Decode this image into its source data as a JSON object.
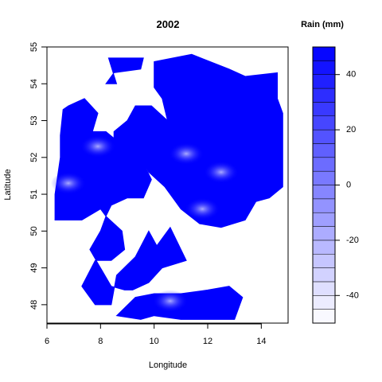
{
  "chart_data": {
    "type": "filled-contour",
    "title": "2002",
    "xlabel": "Longitude",
    "ylabel": "Latitude",
    "xlim": [
      6,
      15
    ],
    "ylim": [
      47.5,
      55
    ],
    "x_ticks": [
      6,
      8,
      10,
      12,
      14
    ],
    "y_ticks": [
      48,
      49,
      50,
      51,
      52,
      53,
      54,
      55
    ],
    "legend": {
      "title": "Rain (mm)",
      "min": -50,
      "max": 50,
      "levels": [
        -50,
        -45,
        -40,
        -35,
        -30,
        -25,
        -20,
        -15,
        -10,
        -5,
        0,
        5,
        10,
        15,
        20,
        25,
        30,
        35,
        40,
        45,
        50
      ],
      "ticks": [
        -40,
        -20,
        0,
        20,
        40
      ],
      "placement": "right",
      "color_low": "#ffffff",
      "color_high": "#0000ff"
    },
    "fill_color": "#0000ff",
    "regions": [
      {
        "name": "north-cap",
        "coords": [
          [
            8.3,
            54.7
          ],
          [
            9.6,
            54.7
          ],
          [
            9.5,
            54.4
          ],
          [
            8.5,
            54.3
          ],
          [
            8.2,
            54.0
          ],
          [
            8.6,
            54.0
          ]
        ]
      },
      {
        "name": "main-northeast",
        "coords": [
          [
            10.0,
            54.6
          ],
          [
            11.4,
            54.8
          ],
          [
            12.8,
            54.4
          ],
          [
            13.4,
            54.2
          ],
          [
            14.6,
            54.3
          ],
          [
            14.6,
            53.6
          ],
          [
            14.8,
            53.2
          ],
          [
            14.8,
            52.5
          ],
          [
            14.8,
            51.2
          ],
          [
            14.3,
            50.9
          ],
          [
            13.8,
            50.8
          ],
          [
            13.4,
            50.3
          ],
          [
            12.5,
            50.1
          ],
          [
            11.7,
            50.2
          ],
          [
            11.0,
            50.6
          ],
          [
            10.4,
            51.2
          ],
          [
            9.8,
            51.6
          ],
          [
            9.5,
            52.0
          ],
          [
            8.8,
            52.2
          ],
          [
            8.5,
            52.4
          ],
          [
            8.5,
            52.7
          ],
          [
            9.0,
            53.0
          ],
          [
            9.3,
            53.4
          ],
          [
            9.9,
            53.4
          ],
          [
            10.5,
            53.0
          ],
          [
            10.3,
            53.6
          ],
          [
            10.0,
            53.9
          ]
        ]
      },
      {
        "name": "west-block",
        "coords": [
          [
            6.6,
            53.3
          ],
          [
            6.8,
            53.4
          ],
          [
            7.4,
            53.6
          ],
          [
            7.9,
            53.2
          ],
          [
            7.7,
            52.7
          ],
          [
            8.2,
            52.7
          ],
          [
            8.7,
            52.4
          ],
          [
            9.5,
            52.0
          ],
          [
            9.9,
            51.4
          ],
          [
            9.6,
            50.9
          ],
          [
            9.0,
            50.9
          ],
          [
            8.4,
            50.7
          ],
          [
            8.2,
            50.4
          ],
          [
            8.0,
            50.6
          ],
          [
            7.3,
            50.3
          ],
          [
            6.3,
            50.3
          ],
          [
            6.3,
            51.0
          ],
          [
            6.5,
            52.0
          ],
          [
            6.5,
            52.6
          ]
        ]
      },
      {
        "name": "south-middle",
        "coords": [
          [
            8.2,
            50.4
          ],
          [
            8.8,
            50.0
          ],
          [
            8.9,
            49.5
          ],
          [
            8.4,
            49.2
          ],
          [
            7.8,
            49.2
          ],
          [
            7.3,
            48.5
          ],
          [
            7.8,
            48.0
          ],
          [
            8.4,
            48.0
          ],
          [
            8.6,
            48.8
          ],
          [
            9.3,
            49.3
          ],
          [
            9.8,
            50.0
          ],
          [
            10.1,
            49.6
          ],
          [
            10.6,
            50.1
          ],
          [
            11.2,
            49.2
          ],
          [
            10.3,
            49.0
          ],
          [
            9.8,
            48.6
          ],
          [
            9.2,
            48.4
          ],
          [
            8.9,
            48.4
          ],
          [
            8.4,
            48.5
          ],
          [
            8.0,
            49.0
          ],
          [
            7.6,
            49.5
          ],
          [
            8.0,
            50.0
          ]
        ]
      },
      {
        "name": "south-strip",
        "coords": [
          [
            8.6,
            47.7
          ],
          [
            9.3,
            48.2
          ],
          [
            10.0,
            48.3
          ],
          [
            11.0,
            48.3
          ],
          [
            12.0,
            48.4
          ],
          [
            12.8,
            48.5
          ],
          [
            13.3,
            48.2
          ],
          [
            13.0,
            47.6
          ],
          [
            12.0,
            47.6
          ],
          [
            11.0,
            47.6
          ],
          [
            10.0,
            47.7
          ],
          [
            9.5,
            47.6
          ]
        ]
      }
    ],
    "hotspots": [
      [
        7.9,
        52.3
      ],
      [
        11.2,
        52.1
      ],
      [
        12.5,
        51.6
      ],
      [
        6.8,
        51.3
      ],
      [
        11.8,
        50.6
      ],
      [
        10.6,
        48.1
      ]
    ]
  }
}
